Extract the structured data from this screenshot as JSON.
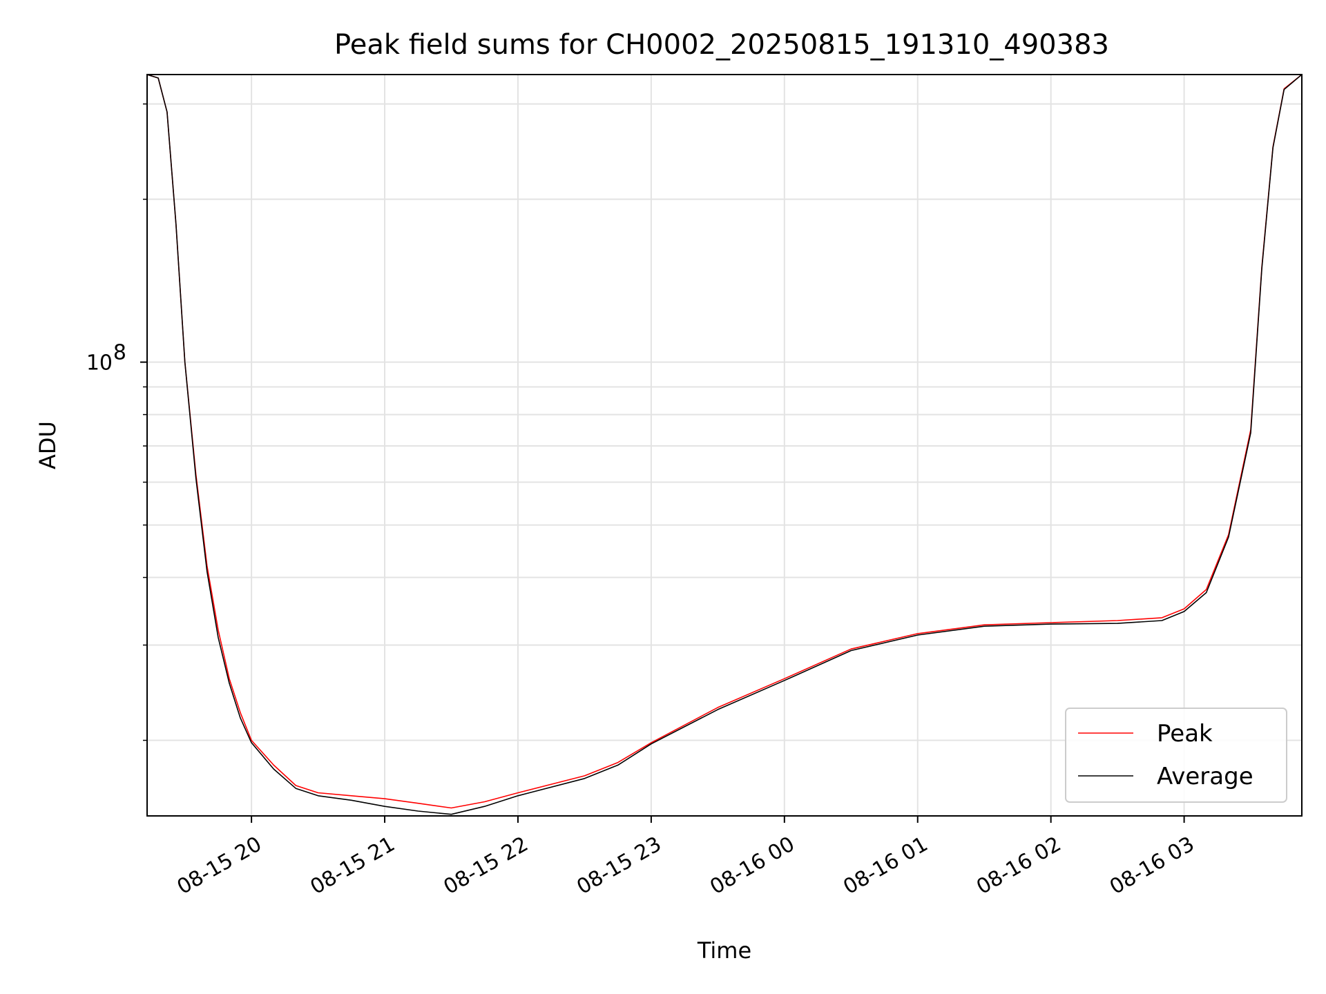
{
  "chart_data": {
    "type": "line",
    "title": "Peak field sums for CH0002_20250815_191310_490383",
    "xlabel": "Time",
    "ylabel": "ADU",
    "x_scale": "time",
    "y_scale": "log",
    "xlim": [
      "2025-08-15 19:13",
      "2025-08-16 03:53"
    ],
    "ylim": [
      14500000,
      340000000
    ],
    "x_ticks": [
      {
        "value": "2025-08-15 20:00",
        "label": "08-15 20"
      },
      {
        "value": "2025-08-15 21:00",
        "label": "08-15 21"
      },
      {
        "value": "2025-08-15 22:00",
        "label": "08-15 22"
      },
      {
        "value": "2025-08-15 23:00",
        "label": "08-15 23"
      },
      {
        "value": "2025-08-16 00:00",
        "label": "08-16 00"
      },
      {
        "value": "2025-08-16 01:00",
        "label": "08-16 01"
      },
      {
        "value": "2025-08-16 02:00",
        "label": "08-16 02"
      },
      {
        "value": "2025-08-16 03:00",
        "label": "08-16 03"
      }
    ],
    "y_ticks": [
      {
        "value": 100000000,
        "base": "10",
        "exp": "8"
      }
    ],
    "y_minor_ticks": [
      20000000,
      30000000,
      40000000,
      50000000,
      60000000,
      70000000,
      80000000,
      90000000,
      200000000,
      300000000
    ],
    "grid": true,
    "legend_position": "lower-right",
    "series": [
      {
        "name": "Peak",
        "color": "#ff0000",
        "x": [
          "2025-08-15 19:13",
          "2025-08-15 19:18",
          "2025-08-15 19:22",
          "2025-08-15 19:26",
          "2025-08-15 19:30",
          "2025-08-15 19:35",
          "2025-08-15 19:40",
          "2025-08-15 19:45",
          "2025-08-15 19:50",
          "2025-08-15 19:55",
          "2025-08-15 20:00",
          "2025-08-15 20:10",
          "2025-08-15 20:20",
          "2025-08-15 20:30",
          "2025-08-15 20:45",
          "2025-08-15 21:00",
          "2025-08-15 21:15",
          "2025-08-15 21:30",
          "2025-08-15 21:45",
          "2025-08-15 22:00",
          "2025-08-15 22:30",
          "2025-08-15 22:45",
          "2025-08-15 23:00",
          "2025-08-15 23:30",
          "2025-08-16 00:00",
          "2025-08-16 00:30",
          "2025-08-16 01:00",
          "2025-08-16 01:30",
          "2025-08-16 02:00",
          "2025-08-16 02:30",
          "2025-08-16 02:50",
          "2025-08-16 03:00",
          "2025-08-16 03:10",
          "2025-08-16 03:20",
          "2025-08-16 03:30",
          "2025-08-16 03:35",
          "2025-08-16 03:40",
          "2025-08-16 03:45",
          "2025-08-16 03:53"
        ],
        "y": [
          340000000,
          335000000,
          290000000,
          180000000,
          100000000,
          62000000,
          42000000,
          32000000,
          26000000,
          22500000,
          20000000,
          18000000,
          16500000,
          16000000,
          15800000,
          15600000,
          15300000,
          15000000,
          15400000,
          16000000,
          17200000,
          18200000,
          19800000,
          23000000,
          26000000,
          29500000,
          31500000,
          32700000,
          33000000,
          33300000,
          33700000,
          35000000,
          38000000,
          48000000,
          75000000,
          150000000,
          250000000,
          320000000,
          340000000
        ]
      },
      {
        "name": "Average",
        "color": "#000000",
        "x": [
          "2025-08-15 19:13",
          "2025-08-15 19:18",
          "2025-08-15 19:22",
          "2025-08-15 19:26",
          "2025-08-15 19:30",
          "2025-08-15 19:35",
          "2025-08-15 19:40",
          "2025-08-15 19:45",
          "2025-08-15 19:50",
          "2025-08-15 19:55",
          "2025-08-15 20:00",
          "2025-08-15 20:10",
          "2025-08-15 20:20",
          "2025-08-15 20:30",
          "2025-08-15 20:45",
          "2025-08-15 21:00",
          "2025-08-15 21:15",
          "2025-08-15 21:30",
          "2025-08-15 21:45",
          "2025-08-15 22:00",
          "2025-08-15 22:30",
          "2025-08-15 22:45",
          "2025-08-15 23:00",
          "2025-08-15 23:30",
          "2025-08-16 00:00",
          "2025-08-16 00:30",
          "2025-08-16 01:00",
          "2025-08-16 01:30",
          "2025-08-16 02:00",
          "2025-08-16 02:30",
          "2025-08-16 02:50",
          "2025-08-16 03:00",
          "2025-08-16 03:10",
          "2025-08-16 03:20",
          "2025-08-16 03:30",
          "2025-08-16 03:35",
          "2025-08-16 03:40",
          "2025-08-16 03:45",
          "2025-08-16 03:53"
        ],
        "y": [
          340000000,
          335000000,
          290000000,
          180000000,
          100000000,
          61000000,
          41000000,
          31000000,
          25500000,
          22000000,
          19800000,
          17700000,
          16300000,
          15800000,
          15500000,
          15100000,
          14800000,
          14600000,
          15100000,
          15800000,
          17000000,
          18000000,
          19700000,
          22800000,
          25800000,
          29300000,
          31300000,
          32500000,
          32800000,
          32900000,
          33300000,
          34600000,
          37500000,
          47500000,
          74000000,
          149000000,
          249000000,
          319000000,
          340000000
        ]
      }
    ]
  }
}
